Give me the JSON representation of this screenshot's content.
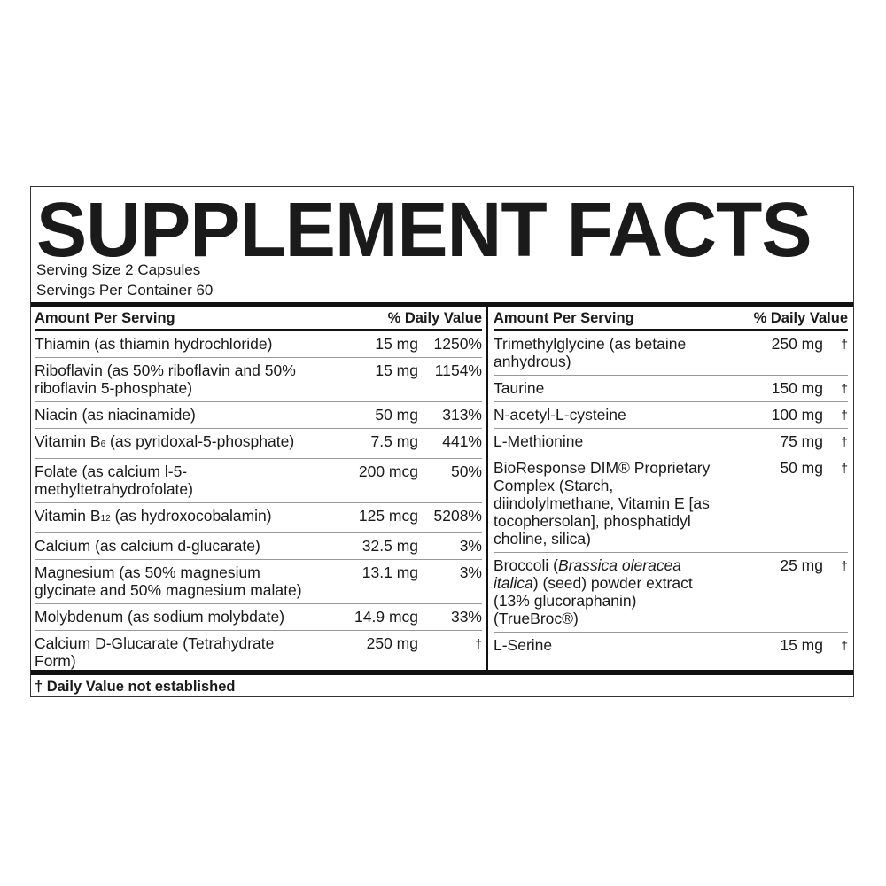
{
  "title": "SUPPLEMENT FACTS",
  "serving_size": "Serving Size 2 Capsules",
  "servings_per_container": "Servings Per Container 60",
  "header": {
    "amount": "Amount Per Serving",
    "dv": "% Daily Value"
  },
  "left_rows": [
    {
      "name": [
        {
          "t": "Thiamin (as thiamin hydrochloride)"
        }
      ],
      "amount": "15 mg",
      "dv": "1250%"
    },
    {
      "name": [
        {
          "t": "Riboflavin (as 50% riboflavin and 50% riboflavin 5-phosphate)"
        }
      ],
      "amount": "15 mg",
      "dv": "1154%"
    },
    {
      "name": [
        {
          "t": "Niacin (as niacinamide)"
        }
      ],
      "amount": "50 mg",
      "dv": "313%"
    },
    {
      "name": [
        {
          "t": "Vitamin B"
        },
        {
          "t": "6",
          "sub": true
        },
        {
          "t": " (as pyridoxal-5-phosphate)"
        }
      ],
      "amount": "7.5 mg",
      "dv": "441%"
    },
    {
      "name": [
        {
          "t": "Folate (as calcium l-5-methyltetrahydrofolate)"
        }
      ],
      "amount": "200 mcg",
      "dv": "50%"
    },
    {
      "name": [
        {
          "t": "Vitamin B"
        },
        {
          "t": "12",
          "sub": true
        },
        {
          "t": " (as hydroxocobalamin)"
        }
      ],
      "amount": "125 mcg",
      "dv": "5208%"
    },
    {
      "name": [
        {
          "t": "Calcium (as calcium d-glucarate)"
        }
      ],
      "amount": "32.5 mg",
      "dv": "3%"
    },
    {
      "name": [
        {
          "t": "Magnesium (as 50% magnesium glycinate and 50% magnesium malate)"
        }
      ],
      "amount": "13.1 mg",
      "dv": "3%"
    },
    {
      "name": [
        {
          "t": "Molybdenum (as sodium molybdate)"
        }
      ],
      "amount": "14.9 mcg",
      "dv": "33%"
    },
    {
      "name": [
        {
          "t": "Calcium D-Glucarate (Tetrahydrate Form)"
        }
      ],
      "amount": "250 mg",
      "dv": "†"
    }
  ],
  "right_rows": [
    {
      "name": [
        {
          "t": "Trimethylglycine (as betaine anhydrous)"
        }
      ],
      "amount": "250 mg",
      "dv": "†"
    },
    {
      "name": [
        {
          "t": "Taurine"
        }
      ],
      "amount": "150 mg",
      "dv": "†"
    },
    {
      "name": [
        {
          "t": "N-acetyl-L-cysteine"
        }
      ],
      "amount": "100 mg",
      "dv": "†"
    },
    {
      "name": [
        {
          "t": "L-Methionine"
        }
      ],
      "amount": "75 mg",
      "dv": "†"
    },
    {
      "name": [
        {
          "t": "BioResponse DIM® Proprietary Complex (Starch, diindolylmethane, Vitamin E [as tocophersolan], phosphatidyl choline, silica)"
        }
      ],
      "amount": "50 mg",
      "dv": "†"
    },
    {
      "name": [
        {
          "t": "Broccoli ("
        },
        {
          "t": "Brassica oleracea italica",
          "i": true
        },
        {
          "t": ") (seed) powder extract (13% glucoraphanin) (TrueBroc®)"
        }
      ],
      "amount": "25 mg",
      "dv": "†"
    },
    {
      "name": [
        {
          "t": "L-Serine"
        }
      ],
      "amount": "15 mg",
      "dv": "†"
    }
  ],
  "footnote": "† Daily Value not established"
}
